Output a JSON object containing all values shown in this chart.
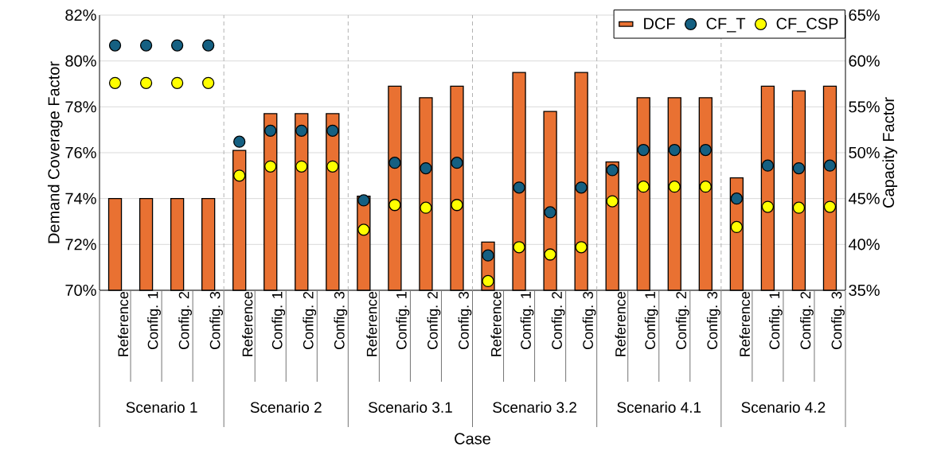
{
  "chart_data": {
    "type": "bar",
    "categories": [
      "Reference",
      "Config. 1",
      "Config. 2",
      "Config. 3",
      "Reference",
      "Config. 1",
      "Config. 2",
      "Config. 3",
      "Reference",
      "Config. 1",
      "Config. 2",
      "Config. 3",
      "Reference",
      "Config. 1",
      "Config. 2",
      "Config. 3",
      "Reference",
      "Config. 1",
      "Config. 2",
      "Config. 3",
      "Reference",
      "Config. 1",
      "Config. 2",
      "Config. 3"
    ],
    "annotations": [
      "Scenario 1",
      "Scenario 2",
      "Scenario 3.1",
      "Scenario 3.2",
      "Scenario 4.1",
      "Scenario 4.2"
    ],
    "xlabel": "Case",
    "ylabel": "Demand Coverage Factor",
    "y2label": "Capacity Factor",
    "ylim": [
      70,
      82
    ],
    "yticks": [
      {
        "value": 70,
        "label": "70%"
      },
      {
        "value": 72,
        "label": "72%"
      },
      {
        "value": 74,
        "label": "74%"
      },
      {
        "value": 76,
        "label": "76%"
      },
      {
        "value": 78,
        "label": "78%"
      },
      {
        "value": 80,
        "label": "80%"
      },
      {
        "value": 82,
        "label": "82%"
      }
    ],
    "y2lim": [
      35,
      65
    ],
    "y2ticks": [
      {
        "value": 35,
        "label": "35%"
      },
      {
        "value": 40,
        "label": "40%"
      },
      {
        "value": 45,
        "label": "45%"
      },
      {
        "value": 50,
        "label": "50%"
      },
      {
        "value": 55,
        "label": "55%"
      },
      {
        "value": 60,
        "label": "60%"
      },
      {
        "value": 65,
        "label": "65%"
      }
    ],
    "grid": "y",
    "legend": "top right",
    "series": [
      {
        "name": "DCF",
        "type": "bar",
        "color": "#e97132",
        "values": [
          74.0,
          74.0,
          74.0,
          74.0,
          76.1,
          77.7,
          77.7,
          77.7,
          74.1,
          78.9,
          78.4,
          78.9,
          72.1,
          79.5,
          77.8,
          79.5,
          75.6,
          78.4,
          78.4,
          78.4,
          74.9,
          78.9,
          78.7,
          78.9
        ]
      },
      {
        "name": "CF_T",
        "type": "scatter",
        "axis": "y2",
        "color": "#156082",
        "values": [
          61.7,
          61.7,
          61.7,
          61.7,
          51.2,
          52.4,
          52.4,
          52.4,
          44.8,
          48.9,
          48.3,
          48.9,
          38.8,
          46.2,
          43.5,
          46.2,
          48.1,
          50.3,
          50.3,
          50.3,
          45.0,
          48.6,
          48.3,
          48.6
        ]
      },
      {
        "name": "CF_CSP",
        "type": "scatter",
        "axis": "y2",
        "color": "#ffff00",
        "values": [
          57.6,
          57.6,
          57.6,
          57.6,
          47.5,
          48.5,
          48.5,
          48.5,
          41.6,
          44.3,
          44.0,
          44.3,
          36.0,
          39.7,
          38.9,
          39.7,
          44.7,
          46.3,
          46.3,
          46.3,
          41.9,
          44.1,
          44.0,
          44.1
        ]
      }
    ]
  }
}
